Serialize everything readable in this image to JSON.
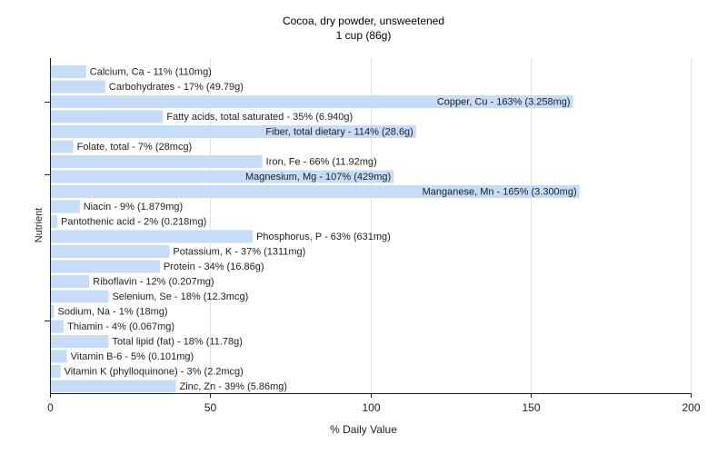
{
  "chart_data": {
    "type": "bar",
    "orientation": "horizontal",
    "title": "Cocoa, dry powder, unsweetened",
    "subtitle": "1 cup (86g)",
    "xlabel": "% Daily Value",
    "ylabel": "Nutrient",
    "xlim": [
      0,
      200
    ],
    "xticks": [
      "0",
      "50",
      "100",
      "150",
      "200"
    ],
    "grid": true,
    "bar_color": "#c6dcf7",
    "categories": [
      "Calcium, Ca",
      "Carbohydrates",
      "Copper, Cu",
      "Fatty acids, total saturated",
      "Fiber, total dietary",
      "Folate, total",
      "Iron, Fe",
      "Magnesium, Mg",
      "Manganese, Mn",
      "Niacin",
      "Pantothenic acid",
      "Phosphorus, P",
      "Potassium, K",
      "Protein",
      "Riboflavin",
      "Selenium, Se",
      "Sodium, Na",
      "Thiamin",
      "Total lipid (fat)",
      "Vitamin B-6",
      "Vitamin K (phylloquinone)",
      "Zinc, Zn"
    ],
    "values": [
      11,
      17,
      163,
      35,
      114,
      7,
      66,
      107,
      165,
      9,
      2,
      63,
      37,
      34,
      12,
      18,
      1,
      4,
      18,
      5,
      3,
      39
    ],
    "labels": [
      "Calcium, Ca - 11% (110mg)",
      "Carbohydrates - 17% (49.79g)",
      "Copper, Cu - 163% (3.258mg)",
      "Fatty acids, total saturated - 35% (6.940g)",
      "Fiber, total dietary - 114% (28.6g)",
      "Folate, total - 7% (28mcg)",
      "Iron, Fe - 66% (11.92mg)",
      "Magnesium, Mg - 107% (429mg)",
      "Manganese, Mn - 165% (3.300mg)",
      "Niacin - 9% (1.879mg)",
      "Pantothenic acid - 2% (0.218mg)",
      "Phosphorus, P - 63% (631mg)",
      "Potassium, K - 37% (1311mg)",
      "Protein - 34% (16.86g)",
      "Riboflavin - 12% (0.207mg)",
      "Selenium, Se - 18% (12.3mcg)",
      "Sodium, Na - 1% (18mg)",
      "Thiamin - 4% (0.067mg)",
      "Total lipid (fat) - 18% (11.78g)",
      "Vitamin B-6 - 5% (0.101mg)",
      "Vitamin K (phylloquinone) - 3% (2.2mcg)",
      "Zinc, Zn - 39% (5.86mg)"
    ]
  }
}
